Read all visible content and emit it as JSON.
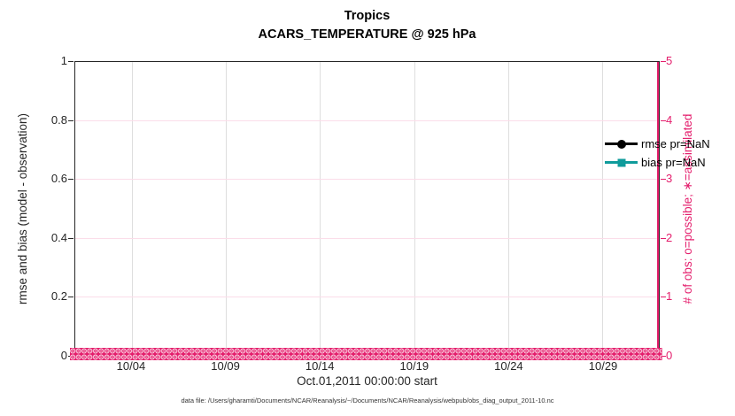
{
  "figure": {
    "title_line1": "Tropics",
    "title_line2": "ACARS_TEMPERATURE @ 925 hPa",
    "caption": "data file: /Users/gharamti/Documents/NCAR/Reanalysis/~/Documents/NCAR/Reanalysis/webpub/obs_diag_output_2011-10.nc"
  },
  "axes": {
    "left": {
      "label": "rmse and bias (model - observation)",
      "tick_labels": [
        "0",
        "0.2",
        "0.4",
        "0.6",
        "0.8",
        "1"
      ],
      "tick_values": [
        0,
        0.2,
        0.4,
        0.6,
        0.8,
        1
      ],
      "range": [
        0,
        1
      ],
      "color": "#262626"
    },
    "right": {
      "label": "# of obs: o=possible; ∗=assimilated",
      "tick_labels": [
        "0",
        "1",
        "2",
        "3",
        "4",
        "5"
      ],
      "tick_values": [
        0,
        1,
        2,
        3,
        4,
        5
      ],
      "range": [
        0,
        5
      ],
      "color": "#E41E6C"
    },
    "x": {
      "label": "Oct.01,2011 00:00:00 start",
      "tick_labels": [
        "10/04",
        "10/09",
        "10/14",
        "10/19",
        "10/24",
        "10/29"
      ],
      "tick_days": [
        3,
        8,
        13,
        18,
        23,
        28
      ],
      "total_days": 31
    }
  },
  "legend": {
    "items": [
      {
        "label": "rmse pr=NaN",
        "color": "#000000",
        "marker": "circle"
      },
      {
        "label": "bias pr=NaN",
        "color": "#0F9B9B",
        "marker": "square"
      }
    ]
  },
  "colors": {
    "obs_pink": "#E41E6C",
    "bias_teal": "#0F9B9B",
    "axis_dark": "#262626",
    "grid_gray": "#DEDEDE",
    "grid_pink": "#FBDDE9"
  },
  "chart_data": {
    "type": "line",
    "title": "Tropics",
    "subtitle": "ACARS_TEMPERATURE @ 925 hPa",
    "xlabel": "Oct.01,2011 00:00:00 start",
    "x_tick_labels": [
      "10/04",
      "10/09",
      "10/14",
      "10/19",
      "10/24",
      "10/29"
    ],
    "x_range": "Oct 1 through Oct 31, 2011 (daily bins)",
    "left_ylabel": "rmse and bias (model - observation)",
    "left_ylim": [
      0,
      1
    ],
    "right_ylabel": "# of obs: o=possible; ∗=assimilated",
    "right_ylim": [
      0,
      5
    ],
    "grid": true,
    "legend_position": "upper right, no box",
    "series": [
      {
        "name": "rmse pr=NaN",
        "axis": "left",
        "marker": "filled circle",
        "color": "#000000",
        "values": "NaN for all times - no curve drawn"
      },
      {
        "name": "bias pr=NaN",
        "axis": "left",
        "marker": "filled square",
        "color": "#0F9B9B",
        "values": "NaN for all times - no curve drawn"
      },
      {
        "name": "# of obs possible (o markers)",
        "axis": "right",
        "marker": "o",
        "color": "#E41E6C",
        "values": "0 at every time bin (dense row of markers along y=0)"
      },
      {
        "name": "# of obs assimilated (∗ markers)",
        "axis": "right",
        "marker": "x",
        "color": "#E41E6C",
        "values": "0 at every time bin (dense row of markers along y=0)"
      }
    ]
  }
}
